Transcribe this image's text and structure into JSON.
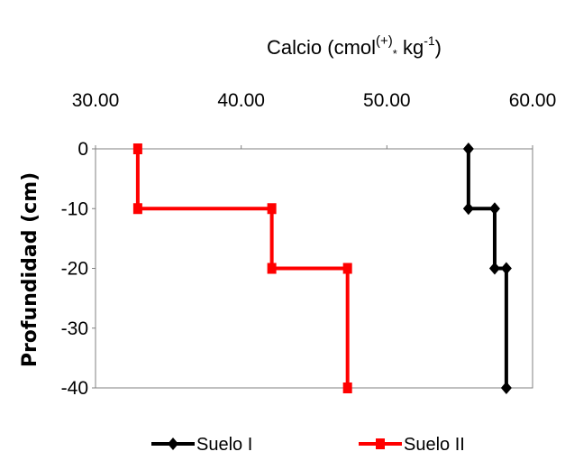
{
  "chart_data": {
    "type": "line",
    "title": {
      "prefix": "Calcio  (cmol",
      "sup": "(+)",
      "mid": " kg",
      "sub": "*",
      "sup2": "-1",
      "suffix": ")"
    },
    "xlabel": "Calcio (cmol(+)* kg-1)",
    "ylabel": "Profundidad (cm)",
    "x_axis_position": "top",
    "xlim": [
      30,
      60
    ],
    "ylim": [
      -40,
      0
    ],
    "x_ticks": [
      "30.00",
      "40.00",
      "50.00",
      "60.00"
    ],
    "y_ticks": [
      "0",
      "-10",
      "-20",
      "-30",
      "-40"
    ],
    "x_tick_values": [
      30,
      40,
      50,
      60
    ],
    "y_tick_values": [
      0,
      -10,
      -20,
      -30,
      -40
    ],
    "grid": false,
    "legend_position": "bottom",
    "series": [
      {
        "name": "Suelo I",
        "color": "#000000",
        "marker": "diamond",
        "points": [
          {
            "x": 55.6,
            "y": 0
          },
          {
            "x": 55.6,
            "y": -10
          },
          {
            "x": 57.4,
            "y": -10
          },
          {
            "x": 57.4,
            "y": -20
          },
          {
            "x": 58.2,
            "y": -20
          },
          {
            "x": 58.2,
            "y": -40
          }
        ]
      },
      {
        "name": "Suelo II",
        "color": "#ff0000",
        "marker": "square",
        "points": [
          {
            "x": 32.9,
            "y": 0
          },
          {
            "x": 32.9,
            "y": -10
          },
          {
            "x": 42.1,
            "y": -10
          },
          {
            "x": 42.1,
            "y": -20
          },
          {
            "x": 47.3,
            "y": -20
          },
          {
            "x": 47.3,
            "y": -40
          }
        ]
      }
    ]
  }
}
